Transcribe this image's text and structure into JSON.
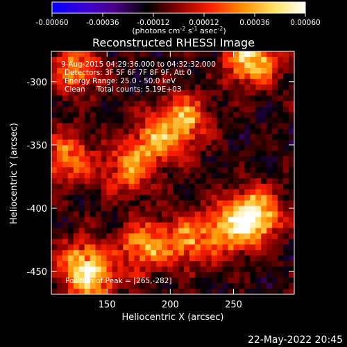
{
  "colorbar": {
    "ticks": [
      "-0.00060",
      "-0.00036",
      "-0.00012",
      "0.00012",
      "0.00036",
      "0.00060"
    ],
    "range": [
      -0.0006,
      0.0006
    ],
    "unit_parts": [
      "(photons cm",
      "-2",
      " s",
      "-1",
      " asec",
      "-2",
      ")"
    ],
    "stops": [
      "#0000ff",
      "#3a00d8",
      "#4b0082",
      "#000000",
      "#8b0000",
      "#ff2000",
      "#ff8c00",
      "#ffe060",
      "#ffffff"
    ]
  },
  "chart_data": {
    "type": "heatmap",
    "title": "Reconstructed RHESSI Image",
    "xlabel": "Heliocentric X (arcsec)",
    "ylabel": "Heliocentric Y (arcsec)",
    "xlim": [
      106,
      298
    ],
    "ylim": [
      -468,
      -276
    ],
    "xticks": [
      150,
      200,
      250
    ],
    "yticks": [
      -300,
      -350,
      -400,
      -450
    ],
    "peak": [
      265,
      -282
    ],
    "hotspots": [
      {
        "x": 265,
        "y": -282,
        "amp": 0.0006
      },
      {
        "x": 125,
        "y": -290,
        "amp": 0.0004
      },
      {
        "x": 210,
        "y": -330,
        "amp": 0.00048
      },
      {
        "x": 188,
        "y": -348,
        "amp": 0.0004
      },
      {
        "x": 165,
        "y": -370,
        "amp": 0.00036
      },
      {
        "x": 118,
        "y": -360,
        "amp": 0.0004
      },
      {
        "x": 268,
        "y": -405,
        "amp": 0.00055
      },
      {
        "x": 250,
        "y": -415,
        "amp": 0.00048
      },
      {
        "x": 215,
        "y": -425,
        "amp": 0.0004
      },
      {
        "x": 180,
        "y": -430,
        "amp": 0.00045
      },
      {
        "x": 130,
        "y": -445,
        "amp": 0.00048
      },
      {
        "x": 140,
        "y": -460,
        "amp": 0.0003
      }
    ],
    "annotations": {
      "time": "9-Aug-2015 04:29:36.000 to 04:32:32.000",
      "detectors": "Detectors: 3F 5F 6F 7F 8F 9F, Att 0",
      "energy": "Energy Range: 25.0 - 50.0 keV",
      "clean": "Clean     Total counts: 5.19E+03",
      "peak": "Position of Peak = [265,-282]"
    }
  },
  "footer": {
    "date": "22-May-2022 20:45"
  }
}
